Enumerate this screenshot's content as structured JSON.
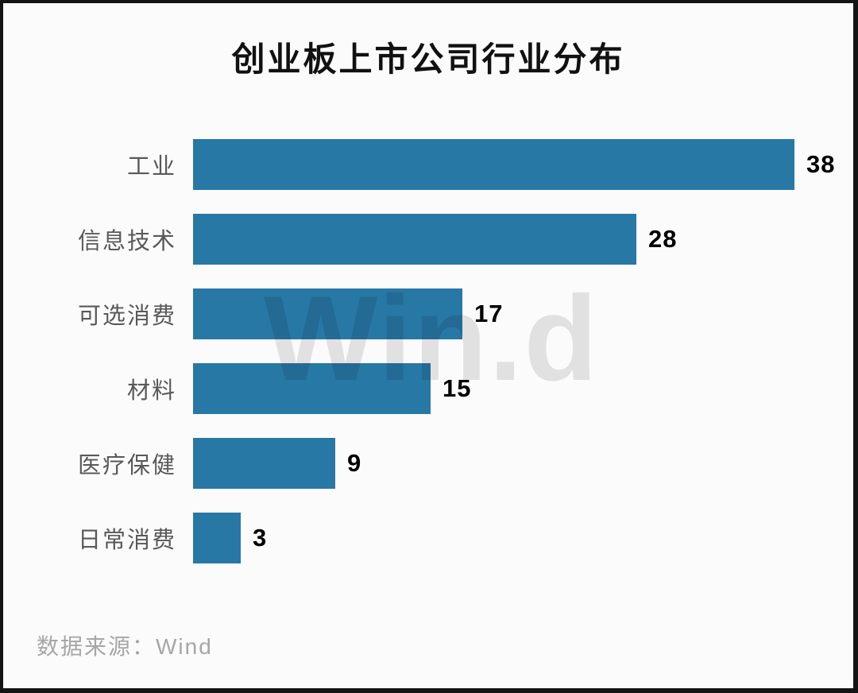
{
  "frame": {
    "background": "#fbfbfc",
    "border_color": "#141414"
  },
  "chart_data": {
    "type": "bar",
    "orientation": "horizontal",
    "title": "创业板上市公司行业分布",
    "categories": [
      "工业",
      "信息技术",
      "可选消费",
      "材料",
      "医疗保健",
      "日常消费"
    ],
    "values": [
      38,
      28,
      17,
      15,
      9,
      3
    ],
    "xlabel": "",
    "ylabel": "",
    "xlim": [
      0,
      38
    ],
    "grid": false,
    "legend": false,
    "value_labels_shown": true,
    "bar_color": "#2878a6",
    "title_color": "#111111",
    "category_label_color": "#595959",
    "value_label_color": "#000000"
  },
  "watermark": {
    "text": "Win.d",
    "color": "rgba(0,0,0,0.10)"
  },
  "source": {
    "label": "数据来源：Wind",
    "color": "#a6a6a6"
  }
}
